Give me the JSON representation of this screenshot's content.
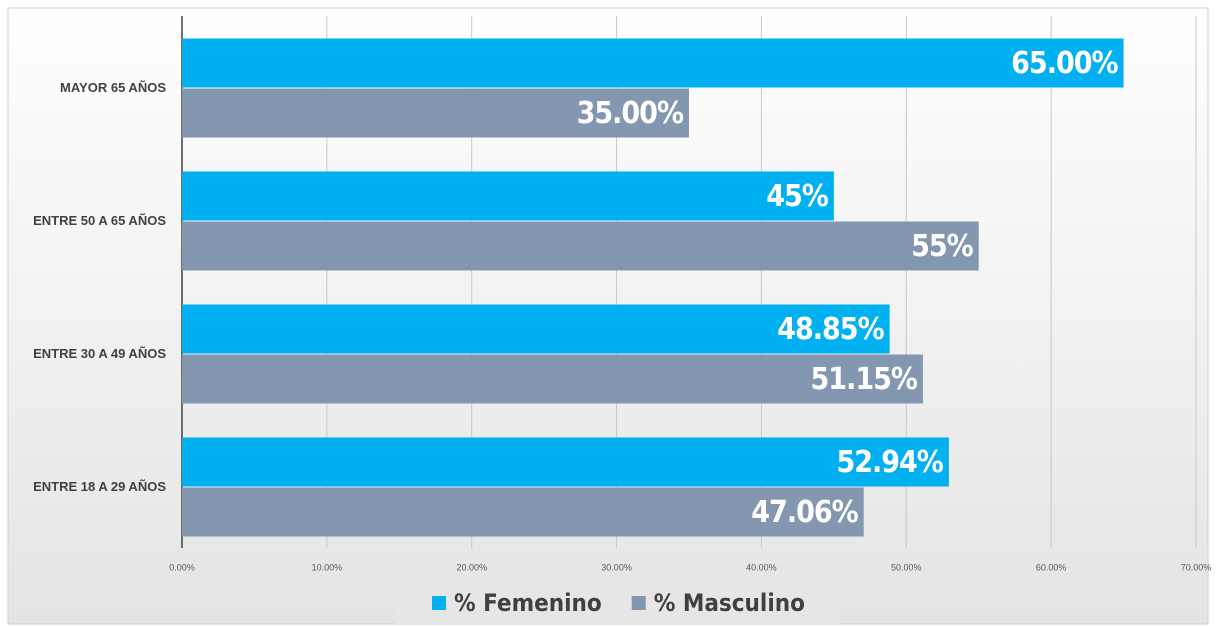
{
  "chart_data": {
    "type": "hbar",
    "categories": [
      "MAYOR 65 AÑOS",
      "ENTRE 50 A 65 AÑOS",
      "ENTRE 30 A 49 AÑOS",
      "ENTRE 18 A 29 AÑOS"
    ],
    "series": [
      {
        "name": "% Femenino",
        "color": "#00b0f0",
        "values": [
          65,
          45,
          48.85,
          52.94
        ],
        "value_labels": [
          "65.00%",
          "45%",
          "48.85%",
          "52.94%"
        ]
      },
      {
        "name": "% Masculino",
        "color": "#8497b0",
        "values": [
          35,
          55,
          51.15,
          47.06
        ],
        "value_labels": [
          "35.00%",
          "55%",
          "51.15%",
          "47.06%"
        ]
      }
    ],
    "xlim": [
      0,
      70
    ],
    "xticks": [
      {
        "value": 0,
        "label": "0.00%"
      },
      {
        "value": 10,
        "label": "10.00%"
      },
      {
        "value": 20,
        "label": "20.00%"
      },
      {
        "value": 30,
        "label": "30.00%"
      },
      {
        "value": 40,
        "label": "40.00%"
      },
      {
        "value": 50,
        "label": "50.00%"
      },
      {
        "value": 60,
        "label": "60.00%"
      },
      {
        "value": 70,
        "label": "70.00%"
      }
    ],
    "grid": true,
    "legend": "bottom"
  }
}
